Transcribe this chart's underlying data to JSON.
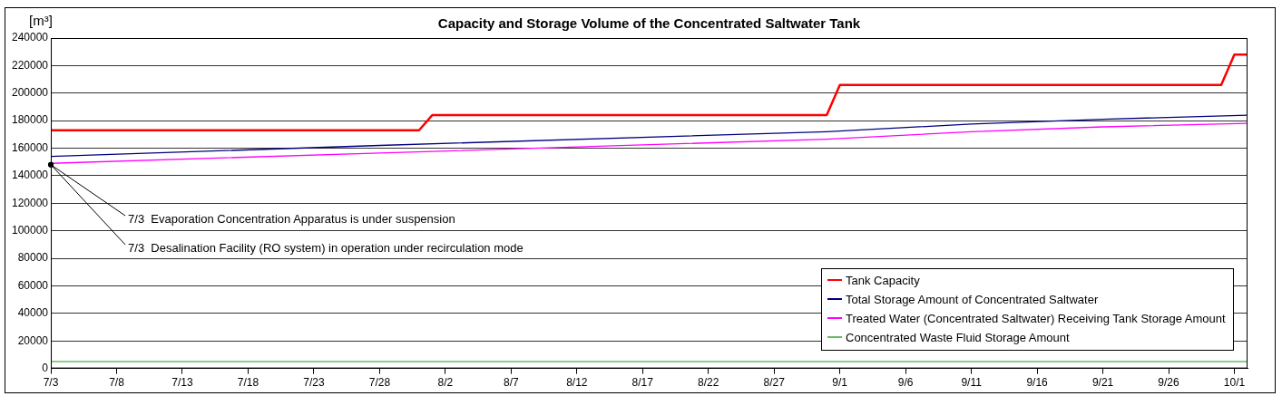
{
  "chart_data": {
    "type": "line",
    "title": "Capacity and Storage Volume of the Concentrated Saltwater Tank",
    "ylabel": "[m³]",
    "xlim": [
      "--07-03",
      "--10-02"
    ],
    "xticks": [
      {
        "value": "--07-03",
        "label": "7/3"
      },
      {
        "value": "--07-08",
        "label": "7/8"
      },
      {
        "value": "--07-13",
        "label": "7/13"
      },
      {
        "value": "--07-18",
        "label": "7/18"
      },
      {
        "value": "--07-23",
        "label": "7/23"
      },
      {
        "value": "--07-28",
        "label": "7/28"
      },
      {
        "value": "--08-02",
        "label": "8/2"
      },
      {
        "value": "--08-07",
        "label": "8/7"
      },
      {
        "value": "--08-12",
        "label": "8/12"
      },
      {
        "value": "--08-17",
        "label": "8/17"
      },
      {
        "value": "--08-22",
        "label": "8/22"
      },
      {
        "value": "--08-27",
        "label": "8/27"
      },
      {
        "value": "--09-01",
        "label": "9/1"
      },
      {
        "value": "--09-06",
        "label": "9/6"
      },
      {
        "value": "--09-11",
        "label": "9/11"
      },
      {
        "value": "--09-16",
        "label": "9/16"
      },
      {
        "value": "--09-21",
        "label": "9/21"
      },
      {
        "value": "--09-26",
        "label": "9/26"
      },
      {
        "value": "--10-01",
        "label": "10/1"
      }
    ],
    "ylim": [
      0,
      240000
    ],
    "yticks": [
      0,
      20000,
      40000,
      60000,
      80000,
      100000,
      120000,
      140000,
      160000,
      180000,
      200000,
      220000,
      240000
    ],
    "grid": "y",
    "legend": "bottom right",
    "marker": "none",
    "line_style": "solid",
    "series": [
      {
        "name": "Tank Capacity",
        "color": "#ff0000",
        "x": [
          "--07-03",
          "--07-31",
          "--08-01",
          "--08-31",
          "--09-01",
          "--09-30",
          "--10-01",
          "--10-02"
        ],
        "values": [
          173000,
          173000,
          184000,
          184000,
          206000,
          206000,
          228000,
          228000
        ]
      },
      {
        "name": "Total Storage Amount of Concentrated Saltwater",
        "color": "#000080",
        "x": [
          "--07-03",
          "--07-28",
          "--08-31",
          "--09-11",
          "--09-21",
          "--10-02"
        ],
        "values": [
          154000,
          162000,
          172000,
          177500,
          181000,
          184000
        ]
      },
      {
        "name": "Treated Water (Concentrated Saltwater) Receiving Tank Storage Amount",
        "color": "#ff00ff",
        "x": [
          "--07-03",
          "--07-28",
          "--08-31",
          "--09-11",
          "--09-21",
          "--10-02"
        ],
        "values": [
          149000,
          156500,
          166500,
          172000,
          175500,
          178000
        ]
      },
      {
        "name": "Concentrated Waste Fluid Storage Amount",
        "color": "#66bb66",
        "x": [
          "--07-03",
          "--10-02"
        ],
        "values": [
          5000,
          5000
        ]
      }
    ],
    "annotations": [
      {
        "text": "7/3  Evaporation Concentration Apparatus is under suspension",
        "x": "--07-03",
        "y": 148000
      },
      {
        "text": "7/3  Desalination Facility (RO system) in operation under recirculation mode",
        "x": "--07-03",
        "y": 148000
      }
    ]
  }
}
